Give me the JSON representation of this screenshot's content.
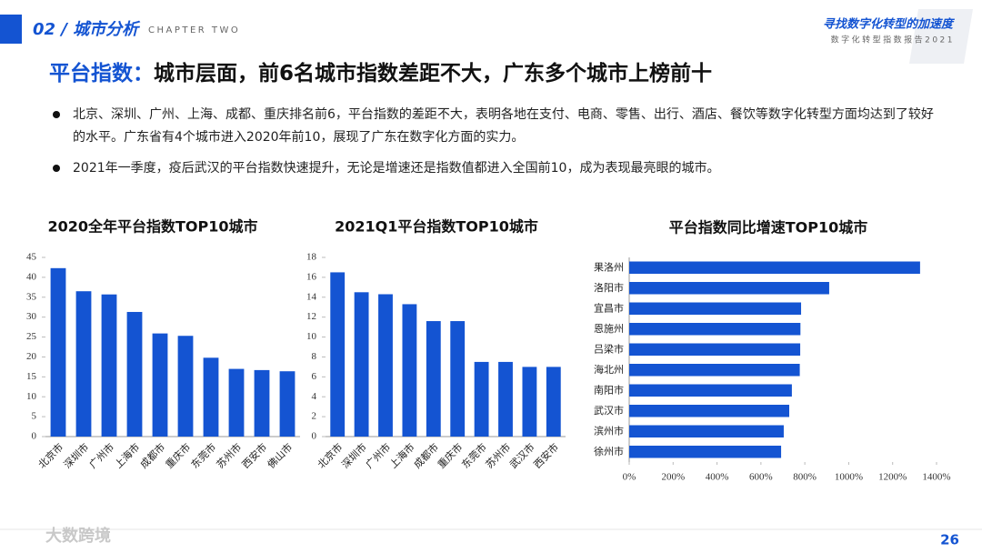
{
  "header": {
    "section": "02 / 城市分析",
    "chapter": "CHAPTER TWO",
    "slogan": "寻找数字化转型的加速度",
    "report": "数字化转型指数报告2021"
  },
  "headline": {
    "lead": "平台指数：",
    "rest": "城市层面，前6名城市指数差距不大，广东多个城市上榜前十"
  },
  "bullets": [
    "北京、深圳、广州、上海、成都、重庆排名前6，平台指数的差距不大，表明各地在支付、电商、零售、出行、酒店、餐饮等数字化转型方面均达到了较好的水平。广东省有4个城市进入2020年前10，展现了广东在数字化方面的实力。",
    "2021年一季度，疫后武汉的平台指数快速提升，无论是增速还是指数值都进入全国前10，成为表现最亮眼的城市。"
  ],
  "footer": {
    "watermark": "大数跨境",
    "page": "26"
  },
  "chart_data": [
    {
      "type": "bar",
      "title": "2020全年平台指数TOP10城市",
      "color": "#1454d2",
      "categories": [
        "北京市",
        "深圳市",
        "广州市",
        "上海市",
        "成都市",
        "重庆市",
        "东莞市",
        "苏州市",
        "西安市",
        "佛山市"
      ],
      "values": [
        42.3,
        36.5,
        35.7,
        31.3,
        25.9,
        25.3,
        19.8,
        17,
        16.7,
        16.4
      ],
      "ylim": [
        0,
        45
      ],
      "yticks": [
        0,
        5,
        10,
        15,
        20,
        25,
        30,
        35,
        40,
        45
      ]
    },
    {
      "type": "bar",
      "title": "2021Q1平台指数TOP10城市",
      "color": "#1454d2",
      "categories": [
        "北京市",
        "深圳市",
        "广州市",
        "上海市",
        "成都市",
        "重庆市",
        "东莞市",
        "苏州市",
        "武汉市",
        "西安市"
      ],
      "values": [
        16.5,
        14.5,
        14.3,
        13.3,
        11.6,
        11.6,
        7.5,
        7.5,
        7.0,
        7.0
      ],
      "ylim": [
        0,
        18
      ],
      "yticks": [
        0,
        2,
        4,
        6,
        8,
        10,
        12,
        14,
        16,
        18
      ]
    },
    {
      "type": "bar",
      "horizontal": true,
      "title": "平台指数同比增速TOP10城市",
      "color": "#1454d2",
      "categories": [
        "果洛州",
        "洛阳市",
        "宜昌市",
        "恩施州",
        "吕梁市",
        "海北州",
        "南阳市",
        "武汉市",
        "滨州市",
        "徐州市"
      ],
      "values": [
        1325,
        911,
        783,
        780,
        779,
        777,
        741,
        729,
        704,
        692
      ],
      "xlim": [
        0,
        1400
      ],
      "xticks": [
        {
          "value": 0,
          "label": "0%"
        },
        {
          "value": 200,
          "label": "200%"
        },
        {
          "value": 400,
          "label": "400%"
        },
        {
          "value": 600,
          "label": "600%"
        },
        {
          "value": 800,
          "label": "800%"
        },
        {
          "value": 1000,
          "label": "1000%"
        },
        {
          "value": 1200,
          "label": "1200%"
        },
        {
          "value": 1400,
          "label": "1400%"
        }
      ]
    }
  ]
}
